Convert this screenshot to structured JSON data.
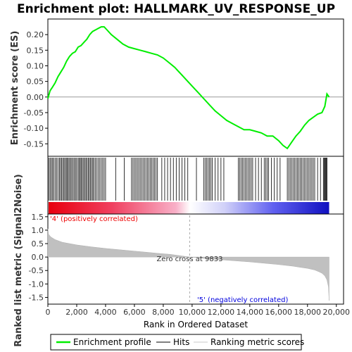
{
  "chart_data": {
    "type": "line",
    "title": "Enrichment plot: HALLMARK_UV_RESPONSE_UP",
    "xlabel": "Rank in Ordered Dataset",
    "xlim": [
      0,
      20500
    ],
    "x_ticks": [
      "0",
      "2,000",
      "4,000",
      "6,000",
      "8,000",
      "10,000",
      "12,000",
      "14,000",
      "16,000",
      "18,000",
      "20,000"
    ],
    "x_tick_values": [
      0,
      2000,
      4000,
      6000,
      8000,
      10000,
      12000,
      14000,
      16000,
      18000,
      20000
    ],
    "n_genes": 19500,
    "top_panel": {
      "ylabel": "Enrichment score (ES)",
      "ylim": [
        -0.19,
        0.25
      ],
      "y_ticks": [
        "-0.15",
        "-0.10",
        "-0.05",
        "0.00",
        "0.05",
        "0.10",
        "0.15",
        "0.20"
      ],
      "y_tick_values": [
        -0.15,
        -0.1,
        -0.05,
        0.0,
        0.05,
        0.1,
        0.15,
        0.2
      ],
      "series": [
        {
          "name": "Enrichment profile",
          "color": "#00ee00",
          "x": [
            0,
            150,
            300,
            500,
            700,
            900,
            1100,
            1300,
            1500,
            1700,
            1900,
            2100,
            2300,
            2500,
            2700,
            2900,
            3100,
            3300,
            3500,
            3700,
            3900,
            4100,
            4400,
            4800,
            5200,
            5600,
            6000,
            6400,
            6800,
            7200,
            7600,
            8000,
            8400,
            8800,
            9200,
            9600,
            10000,
            10400,
            10800,
            11200,
            11600,
            12000,
            12400,
            12800,
            13200,
            13600,
            14000,
            14400,
            14800,
            15200,
            15600,
            16000,
            16300,
            16600,
            16900,
            17200,
            17500,
            17800,
            18100,
            18400,
            18700,
            19000,
            19200,
            19350,
            19500
          ],
          "y": [
            -0.005,
            0.02,
            0.03,
            0.045,
            0.065,
            0.08,
            0.095,
            0.115,
            0.13,
            0.14,
            0.145,
            0.16,
            0.165,
            0.175,
            0.185,
            0.2,
            0.21,
            0.215,
            0.22,
            0.225,
            0.225,
            0.215,
            0.2,
            0.185,
            0.17,
            0.16,
            0.155,
            0.15,
            0.145,
            0.14,
            0.135,
            0.125,
            0.11,
            0.095,
            0.075,
            0.055,
            0.035,
            0.015,
            -0.005,
            -0.025,
            -0.045,
            -0.06,
            -0.075,
            -0.085,
            -0.095,
            -0.105,
            -0.105,
            -0.11,
            -0.115,
            -0.125,
            -0.125,
            -0.14,
            -0.155,
            -0.165,
            -0.145,
            -0.125,
            -0.11,
            -0.09,
            -0.075,
            -0.065,
            -0.055,
            -0.05,
            -0.03,
            0.01,
            0.0
          ]
        }
      ],
      "zero_line": true
    },
    "hits_panel": {
      "legend_name": "Hits",
      "hit_ranks": [
        80,
        160,
        250,
        330,
        420,
        510,
        610,
        700,
        800,
        880,
        960,
        1040,
        1120,
        1200,
        1280,
        1350,
        1420,
        1500,
        1580,
        1660,
        1750,
        1830,
        1920,
        2000,
        2100,
        2180,
        2250,
        2320,
        2400,
        2480,
        2560,
        2640,
        2720,
        2800,
        2880,
        2960,
        3040,
        3120,
        3200,
        3300,
        3400,
        3500,
        3600,
        3700,
        3800,
        3900,
        4000,
        4700,
        5300,
        5800,
        5900,
        6000,
        6100,
        6200,
        6300,
        6400,
        6500,
        6600,
        6700,
        6800,
        6900,
        7000,
        7100,
        7200,
        7300,
        7400,
        7500,
        7600,
        7900,
        8100,
        8300,
        8500,
        8700,
        8900,
        9100,
        9300,
        9500,
        9700,
        10300,
        10800,
        10900,
        11000,
        11100,
        11200,
        11300,
        11400,
        11600,
        11800,
        12000,
        12200,
        13200,
        13300,
        13400,
        13500,
        13600,
        13700,
        13800,
        13900,
        14000,
        14100,
        14200,
        14400,
        14600,
        14800,
        15000,
        15100,
        15200,
        15300,
        15500,
        15700,
        15900,
        16100,
        16600,
        16700,
        16800,
        16900,
        17000,
        17100,
        17200,
        17300,
        17400,
        17500,
        17600,
        17700,
        17800,
        17900,
        18000,
        18100,
        18200,
        18300,
        18400,
        18500,
        18700,
        18900,
        19100,
        19150,
        19200,
        19250,
        19300,
        19350
      ]
    },
    "bottom_panel": {
      "ylabel": "Ranked list metric (Signal2Noise)",
      "ylim": [
        -1.75,
        1.6
      ],
      "y_ticks": [
        "-1.5",
        "-1.0",
        "-0.5",
        "0.0",
        "0.5",
        "1.0",
        "1.5"
      ],
      "y_tick_values": [
        -1.5,
        -1.0,
        -0.5,
        0.0,
        0.5,
        1.0,
        1.5
      ],
      "metric_x": [
        0,
        50,
        200,
        500,
        1000,
        2000,
        3000,
        4000,
        5000,
        6000,
        7000,
        7600,
        8500,
        9833,
        11000,
        12000,
        13000,
        14000,
        15000,
        16000,
        17000,
        17500,
        18000,
        18500,
        18800,
        19000,
        19200,
        19350,
        19450,
        19500
      ],
      "metric_y": [
        1.05,
        0.85,
        0.75,
        0.65,
        0.55,
        0.45,
        0.38,
        0.32,
        0.27,
        0.22,
        0.17,
        0.14,
        0.1,
        0.0,
        -0.06,
        -0.1,
        -0.14,
        -0.18,
        -0.23,
        -0.28,
        -0.34,
        -0.38,
        -0.42,
        -0.48,
        -0.55,
        -0.6,
        -0.7,
        -0.85,
        -1.1,
        -1.62
      ],
      "zero_cross_label": "Zero cross at 9833",
      "zero_cross_rank": 9833,
      "positive_label": "'4' (positively correlated)",
      "negative_label": "'5' (negatively correlated)"
    },
    "legend": {
      "placement": "bottom",
      "items": [
        {
          "label": "Enrichment profile",
          "kind": "green-line"
        },
        {
          "label": "Hits",
          "kind": "black-line"
        },
        {
          "label": "Ranking metric scores",
          "kind": "gray-line"
        }
      ]
    },
    "colors": {
      "profile": "#00ee00",
      "zero_line": "#999999",
      "metric_fill": "#c0c0c0",
      "positive_text": "#ee0000",
      "negative_text": "#0000dd",
      "zero_cross_line": "#aaaaaa"
    }
  }
}
